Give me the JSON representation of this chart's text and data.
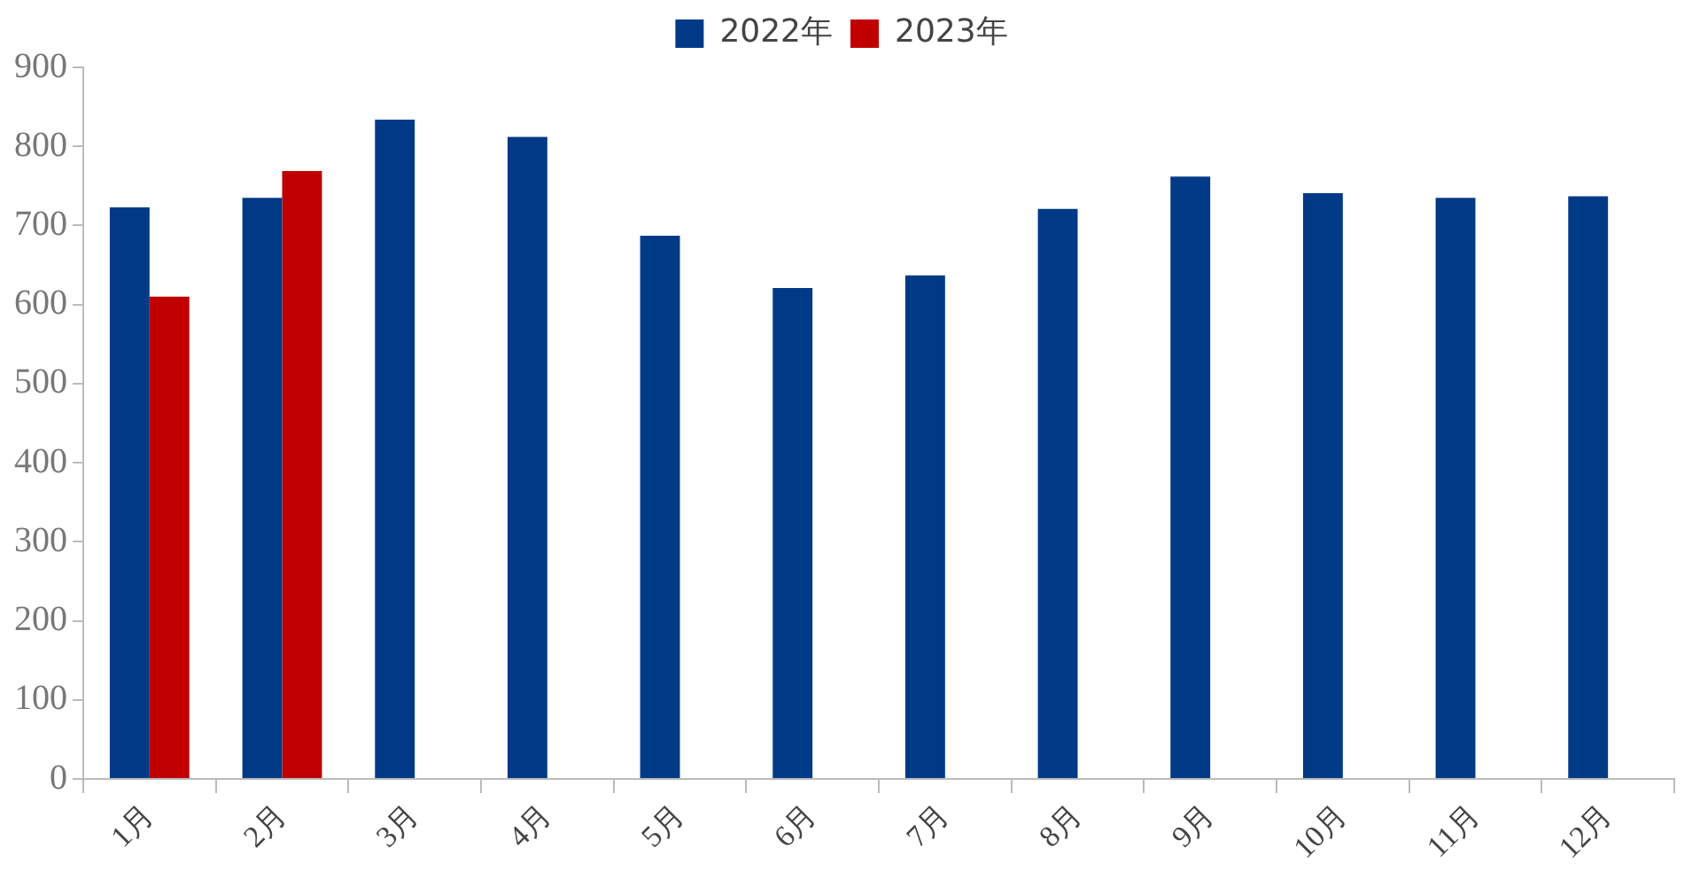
{
  "chart_data": {
    "type": "bar",
    "categories": [
      "1月",
      "2月",
      "3月",
      "4月",
      "5月",
      "6月",
      "7月",
      "8月",
      "9月",
      "10月",
      "11月",
      "12月"
    ],
    "series": [
      {
        "name": "2022年",
        "color": "#003a87",
        "values": [
          723,
          735,
          834,
          812,
          687,
          621,
          637,
          721,
          762,
          741,
          735,
          737
        ]
      },
      {
        "name": "2023年",
        "color": "#c00000",
        "values": [
          610,
          769,
          null,
          null,
          null,
          null,
          null,
          null,
          null,
          null,
          null,
          null
        ]
      }
    ],
    "ylim": [
      0,
      900
    ],
    "yticks": [
      0,
      100,
      200,
      300,
      400,
      500,
      600,
      700,
      800,
      900
    ],
    "grid": false,
    "legend": "top"
  }
}
